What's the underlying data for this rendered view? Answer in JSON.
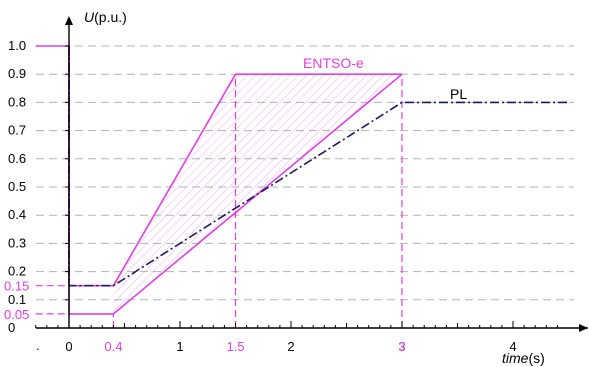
{
  "chart_data": {
    "type": "line",
    "title": "",
    "xlabel_italic": "time",
    "xlabel_unit": "(s)",
    "ylabel_italic": "U",
    "ylabel_unit": "(p.u.)",
    "xlim": [
      -0.3,
      4.5
    ],
    "ylim": [
      0,
      1.05
    ],
    "grid": true,
    "x_ticks": [
      0,
      1,
      2,
      3,
      4
    ],
    "x_tick_labels": [
      "0",
      "1",
      "2",
      "3",
      "4"
    ],
    "x_minor_step": 0.1,
    "x_origin_mark": ".",
    "y_ticks": [
      0,
      0.1,
      0.2,
      0.3,
      0.4,
      0.5,
      0.6,
      0.7,
      0.8,
      0.9,
      1.0
    ],
    "y_tick_labels": [
      "0",
      "0.1",
      "0.2",
      "0.3",
      "0.4",
      "0.5",
      "0.6",
      "0.7",
      "0.8",
      "0.9",
      "1.0"
    ],
    "highlight_x_labels": [
      "0.4",
      "1.5",
      "3"
    ],
    "highlight_y_labels": [
      "0.15",
      "0.05"
    ],
    "series": [
      {
        "name": "ENTSO-e",
        "color": "#e040e0",
        "style": "solid",
        "upper": {
          "x": [
            -0.3,
            0,
            0,
            0.4,
            1.5,
            3
          ],
          "y": [
            1.0,
            1.0,
            0.15,
            0.15,
            0.9,
            0.9
          ]
        },
        "lower": {
          "x": [
            0,
            0,
            0.4,
            3
          ],
          "y": [
            1.0,
            0.05,
            0.05,
            0.9
          ]
        },
        "band": {
          "x": [
            0.4,
            0.4,
            1.5,
            3
          ],
          "y_top": [
            0.15,
            0.15,
            0.9,
            0.9
          ],
          "y_bottom": [
            0.05,
            0.05,
            0.4,
            0.9
          ]
        }
      },
      {
        "name": "PL",
        "color": "#1a1a5e",
        "style": "dash-dot",
        "x": [
          0,
          0,
          0.4,
          3,
          4.5
        ],
        "y": [
          1.0,
          0.15,
          0.15,
          0.8,
          0.8
        ]
      }
    ],
    "guides": [
      {
        "x": [
          0.4,
          0.4
        ],
        "y": [
          0,
          0.05
        ]
      },
      {
        "x": [
          1.5,
          1.5
        ],
        "y": [
          0,
          0.9
        ]
      },
      {
        "x": [
          3,
          3
        ],
        "y": [
          0,
          0.9
        ]
      },
      {
        "x": [
          -0.3,
          0
        ],
        "y": [
          0.15,
          0.15
        ]
      },
      {
        "x": [
          -0.3,
          0
        ],
        "y": [
          0.05,
          0.05
        ]
      }
    ],
    "colors": {
      "highlight": "#e040e0",
      "pl": "#1a1a5e",
      "grid": "#b3b3b3"
    }
  }
}
